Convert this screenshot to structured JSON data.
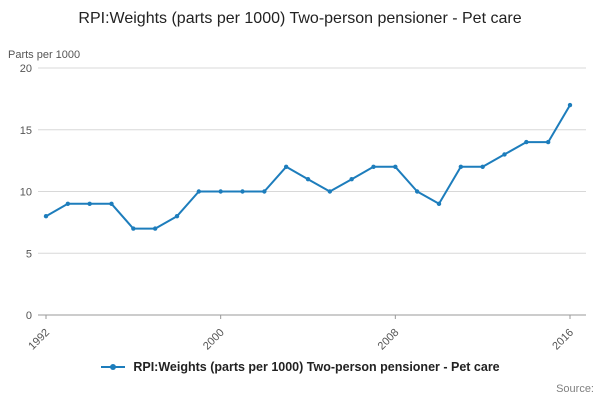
{
  "page": {
    "source_label": "Source:"
  },
  "chart_data": {
    "type": "line",
    "title": "RPI:Weights (parts per 1000) Two-person pensioner - Pet care",
    "ylabel": "Parts per 1000",
    "xlabel": "",
    "x": [
      1992,
      1993,
      1994,
      1995,
      1996,
      1997,
      1998,
      1999,
      2000,
      2001,
      2002,
      2003,
      2004,
      2005,
      2006,
      2007,
      2008,
      2009,
      2010,
      2011,
      2012,
      2013,
      2014,
      2015,
      2016
    ],
    "series": [
      {
        "name": "RPI:Weights (parts per 1000) Two-person pensioner - Pet care",
        "values": [
          8,
          9,
          9,
          9,
          7,
          7,
          8,
          10,
          10,
          10,
          10,
          12,
          11,
          10,
          11,
          12,
          12,
          10,
          9,
          12,
          12,
          13,
          14,
          14,
          17
        ],
        "color": "#1d7dbc"
      }
    ],
    "ylim": [
      0,
      20
    ],
    "yticks": [
      0,
      5,
      10,
      15,
      20
    ],
    "xticks": [
      1992,
      2000,
      2008,
      2016
    ],
    "grid": true,
    "legend_position": "bottom",
    "grid_color": "#d8d8d8",
    "axis_color": "#999999",
    "tick_label_color": "#555555"
  }
}
